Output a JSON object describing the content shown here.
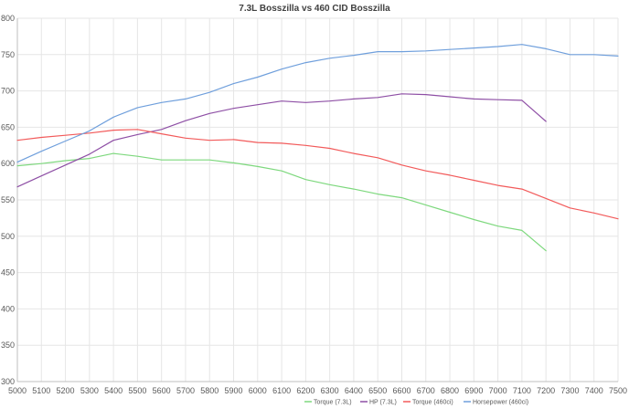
{
  "chart_data": {
    "type": "line",
    "title": "7.3L Bosszilla vs 460 CID Bosszilla",
    "xlabel": "",
    "ylabel": "",
    "x": [
      5000,
      5100,
      5200,
      5300,
      5400,
      5500,
      5600,
      5700,
      5800,
      5900,
      6000,
      6100,
      6200,
      6300,
      6400,
      6500,
      6600,
      6700,
      6800,
      6900,
      7000,
      7100,
      7200,
      7300,
      7400,
      7500
    ],
    "x_ticks": [
      "5000",
      "5100",
      "5200",
      "5300",
      "5400",
      "5500",
      "5600",
      "5700",
      "5800",
      "5900",
      "6000",
      "6100",
      "6200",
      "6300",
      "6400",
      "6500",
      "6600",
      "6700",
      "6800",
      "6900",
      "7000",
      "7100",
      "7200",
      "7300",
      "7400",
      "7500"
    ],
    "y_ticks": [
      "800",
      "750",
      "700",
      "650",
      "600",
      "550",
      "500",
      "450",
      "400",
      "350",
      "300"
    ],
    "xlim": [
      5000,
      7500
    ],
    "ylim": [
      300,
      800
    ],
    "grid": true,
    "legend_position": "bottom",
    "series": [
      {
        "name": "Torque (7.3L)",
        "color": "#7dd87d",
        "points": [
          [
            5000,
            597
          ],
          [
            5100,
            600
          ],
          [
            5200,
            604
          ],
          [
            5300,
            607
          ],
          [
            5400,
            614
          ],
          [
            5500,
            610
          ],
          [
            5600,
            605
          ],
          [
            5700,
            605
          ],
          [
            5800,
            605
          ],
          [
            5900,
            601
          ],
          [
            6000,
            596
          ],
          [
            6100,
            590
          ],
          [
            6200,
            578
          ],
          [
            6300,
            571
          ],
          [
            6400,
            565
          ],
          [
            6500,
            558
          ],
          [
            6600,
            553
          ],
          [
            6700,
            543
          ],
          [
            6800,
            533
          ],
          [
            6900,
            523
          ],
          [
            7000,
            514
          ],
          [
            7100,
            508
          ],
          [
            7200,
            480
          ]
        ]
      },
      {
        "name": "HP (7.3L)",
        "color": "#8e4fa5",
        "points": [
          [
            5000,
            568
          ],
          [
            5100,
            583
          ],
          [
            5200,
            598
          ],
          [
            5300,
            613
          ],
          [
            5400,
            632
          ],
          [
            5500,
            640
          ],
          [
            5600,
            647
          ],
          [
            5700,
            659
          ],
          [
            5800,
            669
          ],
          [
            5900,
            676
          ],
          [
            6000,
            681
          ],
          [
            6100,
            686
          ],
          [
            6200,
            684
          ],
          [
            6300,
            686
          ],
          [
            6400,
            689
          ],
          [
            6500,
            691
          ],
          [
            6600,
            696
          ],
          [
            6700,
            695
          ],
          [
            6800,
            692
          ],
          [
            6900,
            689
          ],
          [
            7000,
            688
          ],
          [
            7100,
            687
          ],
          [
            7200,
            658
          ]
        ]
      },
      {
        "name": "Torque (460ci)",
        "color": "#f25a5a",
        "points": [
          [
            5000,
            632
          ],
          [
            5100,
            636
          ],
          [
            5200,
            639
          ],
          [
            5300,
            642
          ],
          [
            5400,
            646
          ],
          [
            5500,
            647
          ],
          [
            5600,
            641
          ],
          [
            5700,
            635
          ],
          [
            5800,
            632
          ],
          [
            5900,
            633
          ],
          [
            6000,
            629
          ],
          [
            6100,
            628
          ],
          [
            6200,
            625
          ],
          [
            6300,
            621
          ],
          [
            6400,
            614
          ],
          [
            6500,
            608
          ],
          [
            6600,
            598
          ],
          [
            6700,
            590
          ],
          [
            6800,
            584
          ],
          [
            6900,
            577
          ],
          [
            7000,
            570
          ],
          [
            7100,
            565
          ],
          [
            7200,
            552
          ],
          [
            7300,
            539
          ],
          [
            7400,
            532
          ],
          [
            7500,
            524
          ]
        ]
      },
      {
        "name": "Horsepower (460ci)",
        "color": "#6f9fdc",
        "points": [
          [
            5000,
            602
          ],
          [
            5100,
            617
          ],
          [
            5200,
            631
          ],
          [
            5300,
            645
          ],
          [
            5400,
            664
          ],
          [
            5500,
            677
          ],
          [
            5600,
            684
          ],
          [
            5700,
            689
          ],
          [
            5800,
            698
          ],
          [
            5900,
            710
          ],
          [
            6000,
            719
          ],
          [
            6100,
            730
          ],
          [
            6200,
            739
          ],
          [
            6300,
            745
          ],
          [
            6400,
            749
          ],
          [
            6500,
            754
          ],
          [
            6600,
            754
          ],
          [
            6700,
            755
          ],
          [
            6800,
            757
          ],
          [
            6900,
            759
          ],
          [
            7000,
            761
          ],
          [
            7100,
            764
          ],
          [
            7200,
            758
          ],
          [
            7300,
            750
          ],
          [
            7400,
            750
          ],
          [
            7500,
            748
          ]
        ]
      }
    ]
  }
}
